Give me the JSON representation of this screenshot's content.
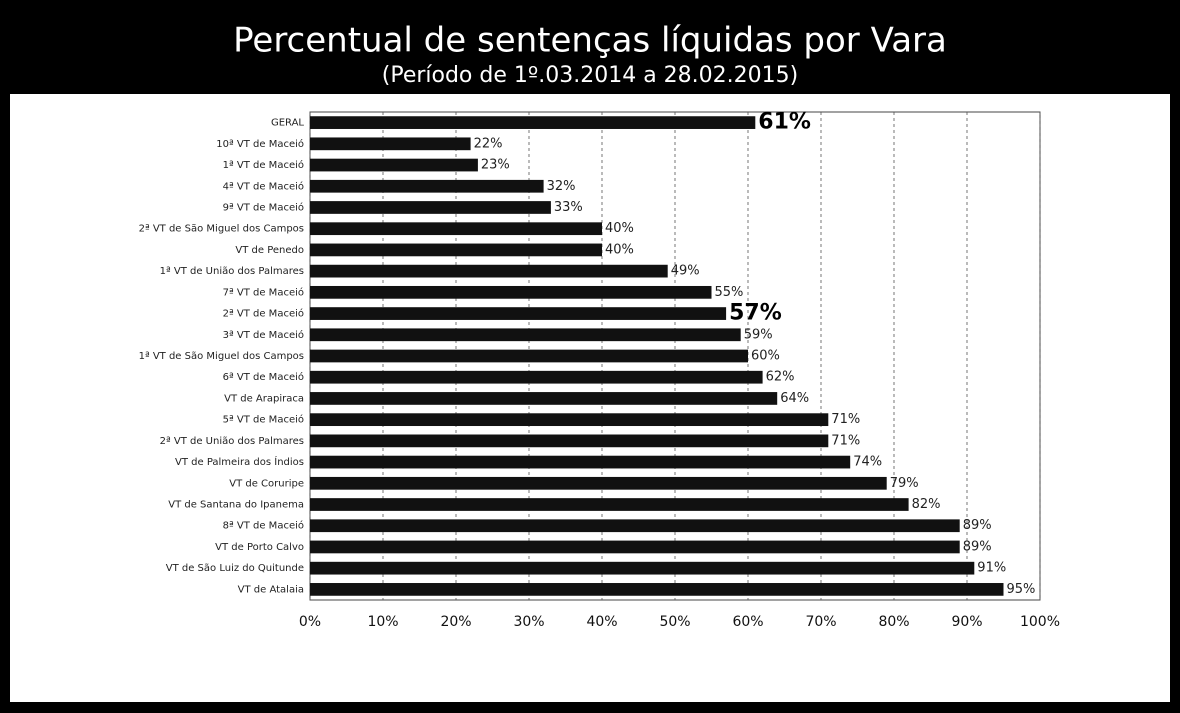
{
  "chart_data": {
    "type": "bar",
    "orientation": "horizontal",
    "title": "Percentual de sentenças líquidas por  Vara",
    "subtitle": "(Período de 1º.03.2014  a  28.02.2015)",
    "categories": [
      "GERAL",
      "10ª VT de Maceió",
      "1ª VT de Maceió",
      "4ª VT de Maceió",
      "9ª VT de Maceió",
      "2ª VT de São Miguel dos Campos",
      "VT de Penedo",
      "1ª VT de União dos Palmares",
      "7ª VT de Maceió",
      "2ª VT de Maceió",
      "3ª VT de Maceió",
      "1ª VT de São Miguel dos Campos",
      "6ª VT de Maceió",
      "VT de Arapiraca",
      "5ª VT de Maceió",
      "2ª VT de União dos Palmares",
      "VT de Palmeira dos Índios",
      "VT de Coruripe",
      "VT de Santana do Ipanema",
      "8ª VT de Maceió",
      "VT de Porto Calvo",
      "VT de São Luiz do Quitunde",
      "VT de Atalaia"
    ],
    "values": [
      61,
      22,
      23,
      32,
      33,
      40,
      40,
      49,
      55,
      57,
      59,
      60,
      62,
      64,
      71,
      71,
      74,
      79,
      82,
      89,
      89,
      91,
      95
    ],
    "value_labels": [
      "61%",
      "22%",
      "23%",
      "32%",
      "33%",
      "40%",
      "40%",
      "49%",
      "55%",
      "57%",
      "59%",
      "60%",
      "62%",
      "64%",
      "71%",
      "71%",
      "74%",
      "79%",
      "82%",
      "89%",
      "89%",
      "91%",
      "95%"
    ],
    "color": "#111111",
    "xlim": [
      0,
      100
    ],
    "xticks": [
      {
        "value": 0,
        "label": "0%"
      },
      {
        "value": 10,
        "label": "10%"
      },
      {
        "value": 20,
        "label": "20%"
      },
      {
        "value": 30,
        "label": "30%"
      },
      {
        "value": 40,
        "label": "40%"
      },
      {
        "value": 50,
        "label": "50%"
      },
      {
        "value": 60,
        "label": "60%"
      },
      {
        "value": 70,
        "label": "70%"
      },
      {
        "value": 80,
        "label": "80%"
      },
      {
        "value": 90,
        "label": "90%"
      },
      {
        "value": 100,
        "label": "100%"
      }
    ],
    "grid": true
  }
}
